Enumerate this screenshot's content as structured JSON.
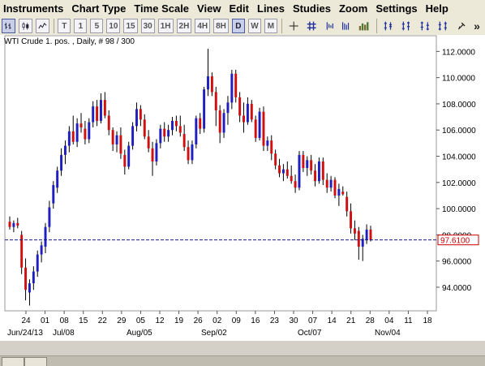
{
  "menu": [
    "Instruments",
    "Chart Type",
    "Time Scale",
    "View",
    "Edit",
    "Lines",
    "Studies",
    "Zoom",
    "Settings",
    "Help"
  ],
  "toolbar": {
    "period_buttons": [
      "T",
      "1",
      "5",
      "10",
      "15",
      "30",
      "1H",
      "2H",
      "4H",
      "8H",
      "D",
      "W",
      "M"
    ],
    "active_period": "D",
    "left_icons": [
      "bar-chart-icon",
      "candlestick-chart-icon",
      "line-chart-icon"
    ],
    "right_icons": [
      "crosshair-icon",
      "grid-icon",
      "zoom-out-icon",
      "zoom-in-icon",
      "volume-icon",
      "draw-lines-icon",
      "fibonacci-icon",
      "trend-channel-icon",
      "channel-icon",
      "pointer-icon",
      "more-icon"
    ],
    "more_label": "»"
  },
  "chart": {
    "title": "WTI Crude 1. pos. , Daily, # 98 / 300",
    "last_price_label": "97.6100",
    "last_price": 97.61,
    "colors": {
      "up": "#1f1fbf",
      "down": "#d01010",
      "line": "#1a1a8a",
      "price_box": "#cc0000"
    }
  },
  "chart_data": {
    "type": "candlestick",
    "ylim": [
      92.2,
      113.2
    ],
    "y_ticks": [
      94,
      96,
      98,
      100,
      102,
      104,
      106,
      108,
      110,
      112
    ],
    "y_tick_labels": [
      "94.0000",
      "96.0000",
      "98.0000",
      "100.0000",
      "102.0000",
      "104.0000",
      "106.0000",
      "108.0000",
      "110.0000",
      "112.0000"
    ],
    "x_tick_labels": [
      "24",
      "01",
      "08",
      "15",
      "22",
      "29",
      "05",
      "12",
      "19",
      "26",
      "02",
      "09",
      "16",
      "23",
      "30",
      "07",
      "14",
      "21",
      "28",
      "04",
      "11",
      "18"
    ],
    "x_month_labels": [
      "Jun/24/13",
      "Jul/08",
      "Aug/05",
      "Sep/02",
      "Oct/07",
      "Nov/04"
    ],
    "candles": [
      [
        99.0,
        99.4,
        98.4,
        98.6
      ],
      [
        98.6,
        99.1,
        98.2,
        98.9
      ],
      [
        98.9,
        99.3,
        98.5,
        98.7
      ],
      [
        98.0,
        98.3,
        95.0,
        95.5
      ],
      [
        95.5,
        96.2,
        93.0,
        93.8
      ],
      [
        93.6,
        94.6,
        92.6,
        94.3
      ],
      [
        94.3,
        95.6,
        93.8,
        95.2
      ],
      [
        95.2,
        96.8,
        94.8,
        96.5
      ],
      [
        96.5,
        97.5,
        95.9,
        97.2
      ],
      [
        97.1,
        98.9,
        96.6,
        98.6
      ],
      [
        98.6,
        100.6,
        98.2,
        100.1
      ],
      [
        100.4,
        102.1,
        100.0,
        101.8
      ],
      [
        101.6,
        103.2,
        101.2,
        102.9
      ],
      [
        102.9,
        104.6,
        102.5,
        104.1
      ],
      [
        104.1,
        105.2,
        103.4,
        104.8
      ],
      [
        104.8,
        106.3,
        104.3,
        105.9
      ],
      [
        105.9,
        107.1,
        104.9,
        105.1
      ],
      [
        105.1,
        106.9,
        104.7,
        106.5
      ],
      [
        106.5,
        107.3,
        105.8,
        106.2
      ],
      [
        106.1,
        106.7,
        104.9,
        105.3
      ],
      [
        105.3,
        106.9,
        105.0,
        106.6
      ],
      [
        106.6,
        108.2,
        106.2,
        107.8
      ],
      [
        107.8,
        108.3,
        106.3,
        106.7
      ],
      [
        106.7,
        108.8,
        106.5,
        108.3
      ],
      [
        108.3,
        108.9,
        106.9,
        107.1
      ],
      [
        107.1,
        107.5,
        105.6,
        106.0
      ],
      [
        106.0,
        106.2,
        104.4,
        104.9
      ],
      [
        104.9,
        105.9,
        104.3,
        105.6
      ],
      [
        105.6,
        106.2,
        103.8,
        104.2
      ],
      [
        104.1,
        104.5,
        102.6,
        103.2
      ],
      [
        103.2,
        105.1,
        103.0,
        104.8
      ],
      [
        104.8,
        106.6,
        104.5,
        106.3
      ],
      [
        106.3,
        108.1,
        105.9,
        107.6
      ],
      [
        107.6,
        107.9,
        106.3,
        106.8
      ],
      [
        106.8,
        107.2,
        105.3,
        105.5
      ],
      [
        105.5,
        106.0,
        104.3,
        104.6
      ],
      [
        104.6,
        105.1,
        102.5,
        103.6
      ],
      [
        103.6,
        105.3,
        103.3,
        105.0
      ],
      [
        105.0,
        106.4,
        104.6,
        106.1
      ],
      [
        106.1,
        106.6,
        105.1,
        105.5
      ],
      [
        105.5,
        106.4,
        105.1,
        106.0
      ],
      [
        106.0,
        107.0,
        105.6,
        106.7
      ],
      [
        106.7,
        107.1,
        105.9,
        106.3
      ],
      [
        106.3,
        107.1,
        105.5,
        105.8
      ],
      [
        105.7,
        106.4,
        104.4,
        104.7
      ],
      [
        104.7,
        105.2,
        103.4,
        103.7
      ],
      [
        103.7,
        105.2,
        103.4,
        104.9
      ],
      [
        104.9,
        107.1,
        104.6,
        106.9
      ],
      [
        106.9,
        107.3,
        105.7,
        106.1
      ],
      [
        106.1,
        109.3,
        105.8,
        109.1
      ],
      [
        109.1,
        112.2,
        108.6,
        110.1
      ],
      [
        110.1,
        110.4,
        108.6,
        108.9
      ],
      [
        108.9,
        109.3,
        106.3,
        107.5
      ],
      [
        107.5,
        107.9,
        105.0,
        105.8
      ],
      [
        105.8,
        107.6,
        105.4,
        107.3
      ],
      [
        107.3,
        108.6,
        106.4,
        108.1
      ],
      [
        108.1,
        110.6,
        107.6,
        110.3
      ],
      [
        110.3,
        110.6,
        108.1,
        108.5
      ],
      [
        108.5,
        108.9,
        106.6,
        107.1
      ],
      [
        107.1,
        108.1,
        105.8,
        106.6
      ],
      [
        106.6,
        108.5,
        106.4,
        108.0
      ],
      [
        108.0,
        108.3,
        106.6,
        106.8
      ],
      [
        106.8,
        107.1,
        105.1,
        105.4
      ],
      [
        105.4,
        107.7,
        105.2,
        107.4
      ],
      [
        107.4,
        107.8,
        104.4,
        104.8
      ],
      [
        104.8,
        105.5,
        104.4,
        105.2
      ],
      [
        105.2,
        105.6,
        103.7,
        104.2
      ],
      [
        104.2,
        104.5,
        103.0,
        103.3
      ],
      [
        103.3,
        103.8,
        102.4,
        102.7
      ],
      [
        102.7,
        103.4,
        102.1,
        103.0
      ],
      [
        103.0,
        103.6,
        102.3,
        102.5
      ],
      [
        102.5,
        103.3,
        101.9,
        102.1
      ],
      [
        102.1,
        102.6,
        101.2,
        101.6
      ],
      [
        101.6,
        104.4,
        101.4,
        104.1
      ],
      [
        104.1,
        104.4,
        102.8,
        103.1
      ],
      [
        103.1,
        104.0,
        102.5,
        103.7
      ],
      [
        103.7,
        104.1,
        102.6,
        102.9
      ],
      [
        102.9,
        103.4,
        101.7,
        102.1
      ],
      [
        102.1,
        103.9,
        101.9,
        103.6
      ],
      [
        103.6,
        103.9,
        101.8,
        102.2
      ],
      [
        102.2,
        102.7,
        101.2,
        101.6
      ],
      [
        101.6,
        102.5,
        101.3,
        102.2
      ],
      [
        102.2,
        102.4,
        100.8,
        101.0
      ],
      [
        101.0,
        101.9,
        100.2,
        101.5
      ],
      [
        101.3,
        101.7,
        101.0,
        101.1
      ],
      [
        100.9,
        101.3,
        99.4,
        99.8
      ],
      [
        99.8,
        100.4,
        98.1,
        98.5
      ],
      [
        98.5,
        99.1,
        97.6,
        98.1
      ],
      [
        98.3,
        98.6,
        96.1,
        97.1
      ],
      [
        97.1,
        98.0,
        96.0,
        97.7
      ],
      [
        97.6,
        98.8,
        97.3,
        98.4
      ],
      [
        98.4,
        98.7,
        97.5,
        97.61
      ]
    ]
  }
}
